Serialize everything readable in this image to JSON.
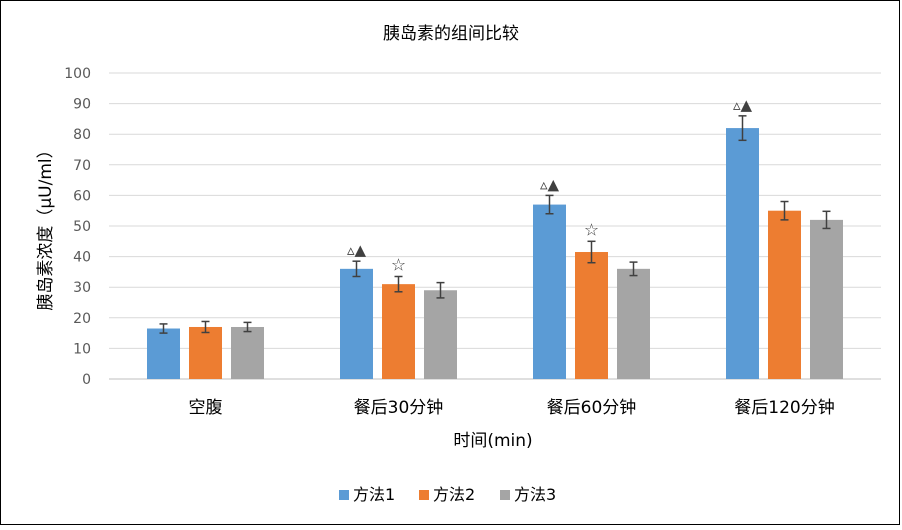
{
  "chart_data": {
    "type": "bar",
    "title": "胰岛素的组间比较",
    "xlabel": "时间(min)",
    "ylabel": "胰岛素浓度（μU/ml）",
    "ylim": [
      0,
      100
    ],
    "yticks": [
      0,
      10,
      20,
      30,
      40,
      50,
      60,
      70,
      80,
      90,
      100
    ],
    "categories": [
      "空腹",
      "餐后30分钟",
      "餐后60分钟",
      "餐后120分钟"
    ],
    "series": [
      {
        "name": "方法1",
        "color": "#5B9BD5",
        "values": [
          16.5,
          36,
          57,
          82
        ],
        "errors": [
          1.5,
          2.5,
          3,
          4
        ]
      },
      {
        "name": "方法2",
        "color": "#ED7D31",
        "values": [
          17,
          31,
          41.5,
          55
        ],
        "errors": [
          1.8,
          2.5,
          3.5,
          3
        ]
      },
      {
        "name": "方法3",
        "color": "#A5A5A5",
        "values": [
          17,
          29,
          36,
          52
        ],
        "errors": [
          1.5,
          2.5,
          2.2,
          2.8
        ]
      }
    ],
    "annotations": [
      {
        "series": 0,
        "category": 1,
        "text": "▵▲"
      },
      {
        "series": 1,
        "category": 1,
        "text": "☆"
      },
      {
        "series": 0,
        "category": 2,
        "text": "▵▲"
      },
      {
        "series": 1,
        "category": 2,
        "text": "☆"
      },
      {
        "series": 0,
        "category": 3,
        "text": "▵▲"
      }
    ],
    "grid": true,
    "legend": "bottom"
  }
}
